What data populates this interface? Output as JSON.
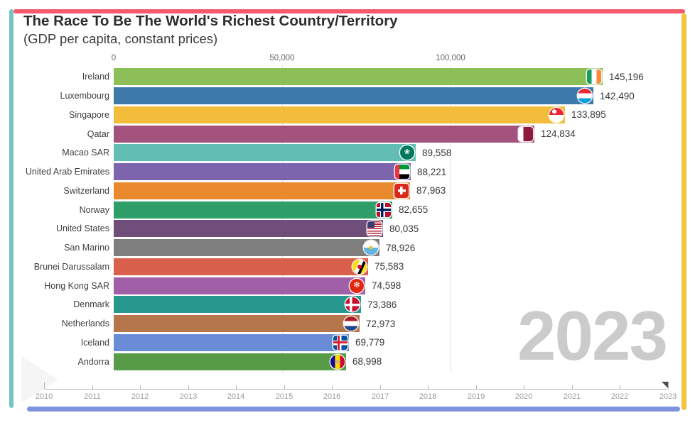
{
  "frame": {
    "top": "#f4596c",
    "left": "#74c5c1",
    "right": "#f2c53d",
    "bottom": "#7d93e0"
  },
  "chart_data": {
    "type": "bar",
    "orientation": "horizontal",
    "title": "The Race To Be The World's Richest Country/Territory",
    "subtitle": "(GDP per capita, constant prices)",
    "year": "2023",
    "categories": [
      "Ireland",
      "Luxembourg",
      "Singapore",
      "Qatar",
      "Macao SAR",
      "United Arab Emirates",
      "Switzerland",
      "Norway",
      "United States",
      "San Marino",
      "Brunei Darussalam",
      "Hong Kong SAR",
      "Denmark",
      "Netherlands",
      "Iceland",
      "Andorra"
    ],
    "values": [
      145196,
      142490,
      133895,
      124834,
      89558,
      88221,
      87963,
      82655,
      80035,
      78926,
      75583,
      74598,
      73386,
      72973,
      69779,
      68998
    ],
    "value_labels": [
      "145,196",
      "142,490",
      "133,895",
      "124,834",
      "89,558",
      "88,221",
      "87,963",
      "82,655",
      "80,035",
      "78,926",
      "75,583",
      "74,598",
      "73,386",
      "72,973",
      "69,779",
      "68,998"
    ],
    "bar_colors": [
      "#8dbf59",
      "#3d7aa9",
      "#f2bd3b",
      "#a3527d",
      "#62bdb3",
      "#7d65ad",
      "#e88a2d",
      "#2f9e68",
      "#6f4e79",
      "#7f7f7f",
      "#d9604c",
      "#a15fa8",
      "#27988d",
      "#b5764c",
      "#6a8bd6",
      "#579b47"
    ],
    "flags": [
      "ie",
      "lu",
      "sg",
      "qa",
      "mo",
      "ae",
      "ch",
      "no",
      "us",
      "sm",
      "bn",
      "hk",
      "dk",
      "nl",
      "is",
      "ad"
    ],
    "flag_shapes": [
      "rect",
      "circle",
      "circle",
      "rect",
      "circle",
      "rect",
      "rect",
      "rect",
      "rect",
      "circle",
      "circle",
      "circle",
      "circle",
      "circle",
      "rect",
      "circle"
    ],
    "x_axis": {
      "position": "top",
      "tick_labels": [
        "0",
        "50,000",
        "100,000"
      ],
      "tick_values": [
        0,
        50000,
        100000
      ],
      "grid": true
    },
    "xlim": [
      0,
      164000
    ],
    "legend": false
  },
  "watermark": {
    "text": "2023"
  },
  "timeline": {
    "years": [
      "2010",
      "2011",
      "2012",
      "2013",
      "2014",
      "2015",
      "2016",
      "2017",
      "2018",
      "2019",
      "2020",
      "2021",
      "2022",
      "2023"
    ],
    "selected_year": "2023"
  }
}
